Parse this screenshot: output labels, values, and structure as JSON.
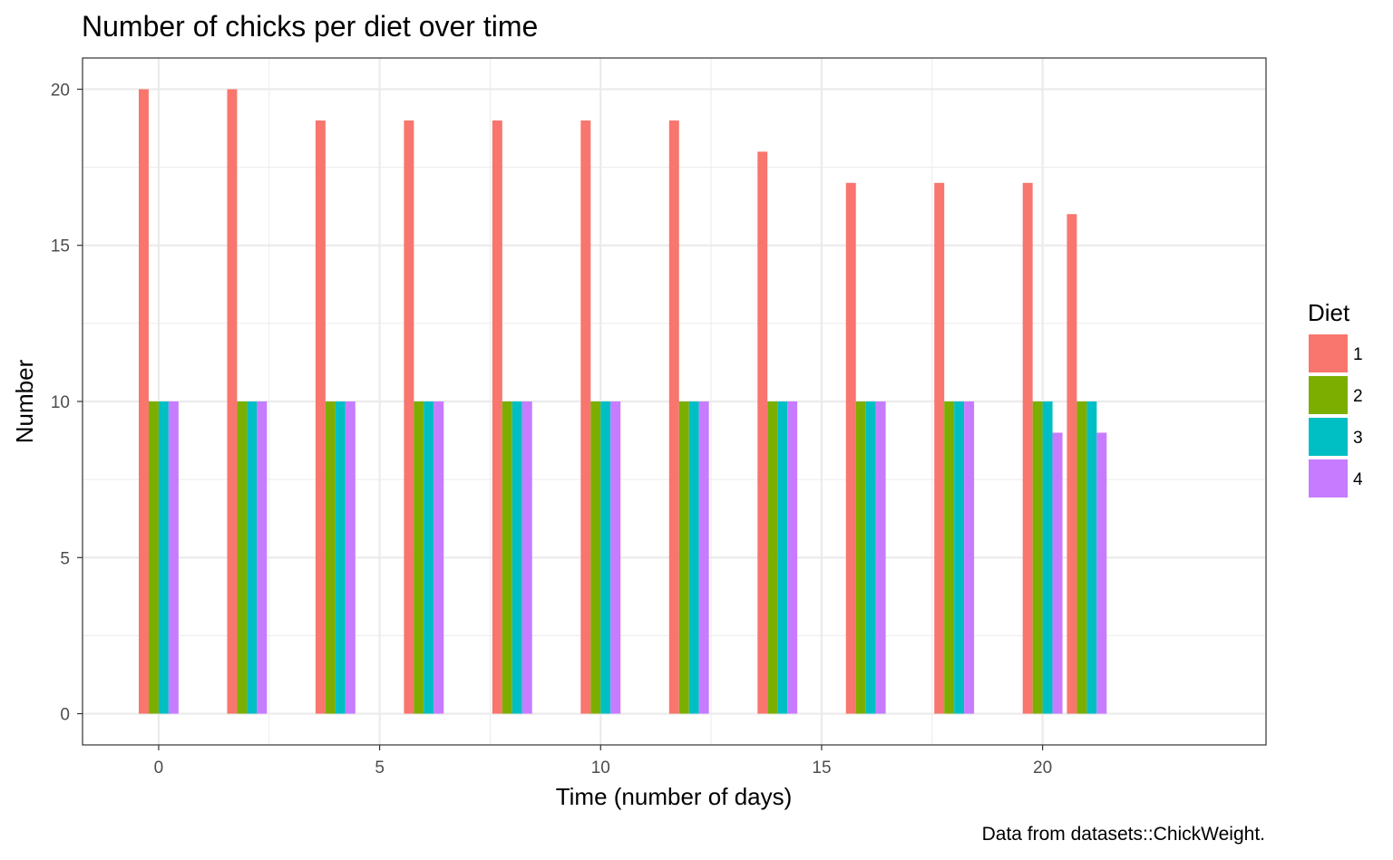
{
  "chart_data": {
    "type": "bar",
    "title": "Number of chicks per diet over time",
    "xlabel": "Time (number of days)",
    "ylabel": "Number",
    "caption": "Data from datasets::ChickWeight.",
    "x": [
      0,
      2,
      4,
      6,
      8,
      10,
      12,
      14,
      16,
      18,
      20,
      21
    ],
    "x_ticks": [
      0,
      5,
      10,
      15,
      20
    ],
    "x_tick_labels": [
      "0",
      "5",
      "10",
      "15",
      "20"
    ],
    "y_ticks": [
      0,
      5,
      10,
      15,
      20
    ],
    "y_tick_labels": [
      "0",
      "5",
      "10",
      "15",
      "20"
    ],
    "xlim": [
      -3.1,
      45.1
    ],
    "ylim": [
      -1,
      21
    ],
    "grid": true,
    "legend": {
      "title": "Diet",
      "position": "right"
    },
    "series": [
      {
        "name": "1",
        "color": "#F8766D",
        "values": [
          20,
          20,
          19,
          19,
          19,
          19,
          19,
          18,
          17,
          17,
          17,
          16
        ]
      },
      {
        "name": "2",
        "color": "#7CAE00",
        "values": [
          10,
          10,
          10,
          10,
          10,
          10,
          10,
          10,
          10,
          10,
          10,
          10
        ]
      },
      {
        "name": "3",
        "color": "#00BFC4",
        "values": [
          10,
          10,
          10,
          10,
          10,
          10,
          10,
          10,
          10,
          10,
          10,
          10
        ]
      },
      {
        "name": "4",
        "color": "#C77CFF",
        "values": [
          10,
          10,
          10,
          10,
          10,
          10,
          10,
          10,
          10,
          10,
          9,
          9
        ]
      }
    ]
  }
}
